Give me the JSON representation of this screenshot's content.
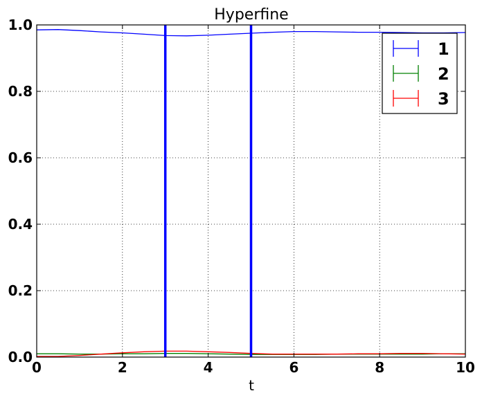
{
  "chart_data": {
    "type": "line",
    "title": "Hyperfine",
    "xlabel": "t",
    "ylabel": "",
    "xlim": [
      0,
      10
    ],
    "ylim": [
      0,
      1
    ],
    "xticks": [
      "0",
      "2",
      "4",
      "6",
      "8",
      "10"
    ],
    "yticks": [
      "0.0",
      "0.2",
      "0.4",
      "0.6",
      "0.8",
      "1.0"
    ],
    "grid": true,
    "legend_position": "top-right",
    "vlines": [
      3,
      5
    ],
    "vline_color": "#0000ff",
    "series": [
      {
        "name": "1",
        "color": "#0000ff",
        "x": [
          0,
          0.5,
          1,
          1.5,
          2,
          2.5,
          3,
          3.5,
          4,
          4.5,
          5,
          5.5,
          6,
          6.5,
          7,
          7.5,
          8,
          8.5,
          9,
          9.5,
          10
        ],
        "y": [
          0.985,
          0.986,
          0.983,
          0.979,
          0.976,
          0.972,
          0.968,
          0.967,
          0.969,
          0.972,
          0.975,
          0.978,
          0.98,
          0.98,
          0.979,
          0.978,
          0.978,
          0.977,
          0.976,
          0.976,
          0.977
        ]
      },
      {
        "name": "2",
        "color": "#008000",
        "x": [
          0,
          0.5,
          1,
          1.5,
          2,
          2.5,
          3,
          3.5,
          4,
          4.5,
          5,
          5.5,
          6,
          6.5,
          7,
          7.5,
          8,
          8.5,
          9,
          9.5,
          10
        ],
        "y": [
          0.01,
          0.01,
          0.009,
          0.009,
          0.01,
          0.01,
          0.011,
          0.011,
          0.01,
          0.009,
          0.008,
          0.008,
          0.008,
          0.008,
          0.009,
          0.009,
          0.009,
          0.009,
          0.009,
          0.01,
          0.01
        ]
      },
      {
        "name": "3",
        "color": "#ff0000",
        "x": [
          0,
          0.5,
          1,
          1.5,
          2,
          2.5,
          3,
          3.5,
          4,
          4.5,
          5,
          5.5,
          6,
          6.5,
          7,
          7.5,
          8,
          8.5,
          9,
          9.5,
          10
        ],
        "y": [
          0.002,
          0.002,
          0.005,
          0.009,
          0.013,
          0.016,
          0.018,
          0.018,
          0.016,
          0.014,
          0.011,
          0.009,
          0.009,
          0.009,
          0.009,
          0.01,
          0.01,
          0.011,
          0.011,
          0.01,
          0.009
        ]
      }
    ]
  }
}
